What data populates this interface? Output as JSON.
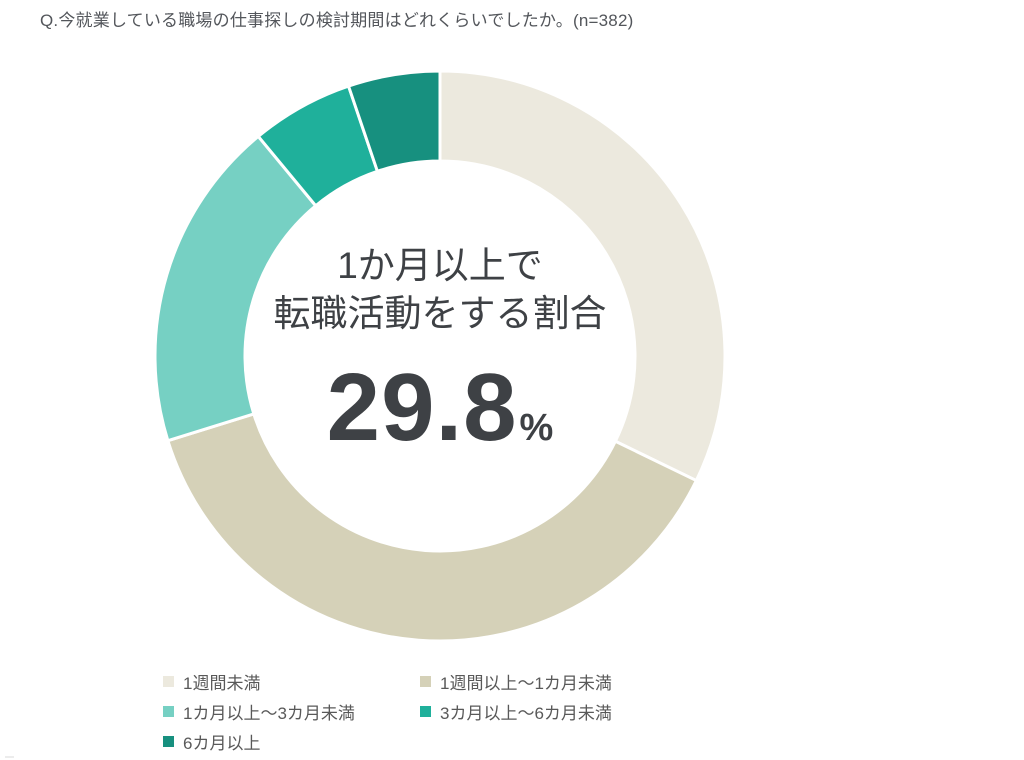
{
  "header": {
    "title": "Q.今就業している職場の仕事探しの検討期間はどれくらいでしたか。(n=382)"
  },
  "donut_center": {
    "label_line1": "1か月以上で",
    "label_line2": "転職活動をする割合",
    "value": "29.8",
    "unit": "%"
  },
  "chart_data": {
    "type": "pie",
    "subtype": "donut",
    "title": "Q.今就業している職場の仕事探しの検討期間はどれくらいでしたか。(n=382)",
    "sample_size_label": "n=382",
    "categories": [
      "1週間未満",
      "1週間以上～1カ月未満",
      "1カ月以上～3カ月未満",
      "3カ月以上～6カ月未満",
      "6カ月以上"
    ],
    "values": [
      32.2,
      38.0,
      18.8,
      5.8,
      5.2
    ],
    "colors": [
      "#ECE9DE",
      "#D5D1B8",
      "#76D0C3",
      "#1FB09B",
      "#17907F"
    ],
    "start_angle_deg": 0,
    "direction": "clockwise",
    "inner_radius_ratio": 0.684,
    "outer_radius_px": 285,
    "inner_radius_px": 195,
    "segment_gap_color": "#FFFFFF",
    "center_annotation": "1か月以上で転職活動をする割合 29.8%",
    "legend_position": "bottom"
  },
  "legend": {
    "items": [
      {
        "label": "1週間未満",
        "color": "#ECE9DE"
      },
      {
        "label": "1週間以上～1カ月未満",
        "color": "#D5D1B8"
      },
      {
        "label": "1カ月以上～3カ月未満",
        "color": "#76D0C3"
      },
      {
        "label": "3カ月以上～6カ月未満",
        "color": "#1FB09B"
      },
      {
        "label": "6カ月以上",
        "color": "#17907F"
      }
    ]
  },
  "text_colors": {
    "title": "#53565B",
    "legend": "#595959",
    "center": "#3E4145"
  }
}
